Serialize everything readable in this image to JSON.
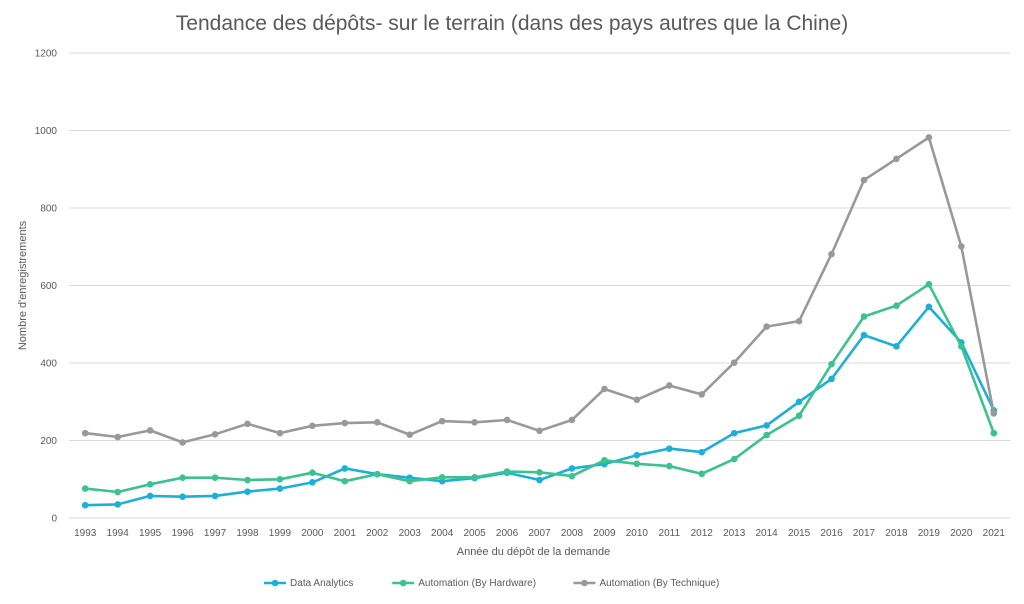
{
  "chart_data": {
    "type": "line",
    "title": "Tendance des dépôts- sur le terrain (dans des pays autres que la Chine)",
    "xlabel": "Année du dépôt de la demande",
    "ylabel": "Nombre d'enregistrements",
    "ylim": [
      0,
      1200
    ],
    "yticks": [
      0,
      200,
      400,
      600,
      800,
      1000,
      1200
    ],
    "grid": true,
    "legend_position": "bottom",
    "categories": [
      "1993",
      "1994",
      "1995",
      "1996",
      "1997",
      "1998",
      "1999",
      "2000",
      "2001",
      "2002",
      "2003",
      "2004",
      "2005",
      "2006",
      "2007",
      "2008",
      "2009",
      "2010",
      "2011",
      "2012",
      "2013",
      "2014",
      "2015",
      "2016",
      "2017",
      "2018",
      "2019",
      "2020",
      "2021"
    ],
    "series": [
      {
        "name": "Data Analytics",
        "color": "#1cb0d8",
        "values": [
          33,
          35,
          57,
          55,
          57,
          68,
          76,
          92,
          128,
          113,
          104,
          95,
          103,
          117,
          98,
          128,
          139,
          162,
          179,
          170,
          219,
          239,
          300,
          359,
          472,
          443,
          545,
          453,
          278
        ]
      },
      {
        "name": "Automation (By Hardware)",
        "color": "#3cc28e",
        "values": [
          76,
          67,
          87,
          104,
          104,
          98,
          100,
          117,
          95,
          113,
          95,
          105,
          105,
          120,
          118,
          108,
          149,
          140,
          134,
          114,
          152,
          214,
          264,
          397,
          520,
          548,
          603,
          443,
          219
        ]
      },
      {
        "name": "Automation (By Technique)",
        "color": "#999999",
        "values": [
          219,
          209,
          226,
          195,
          216,
          243,
          219,
          238,
          245,
          247,
          215,
          250,
          247,
          253,
          225,
          253,
          333,
          305,
          342,
          319,
          401,
          494,
          508,
          681,
          872,
          927,
          982,
          701,
          270
        ]
      }
    ]
  }
}
